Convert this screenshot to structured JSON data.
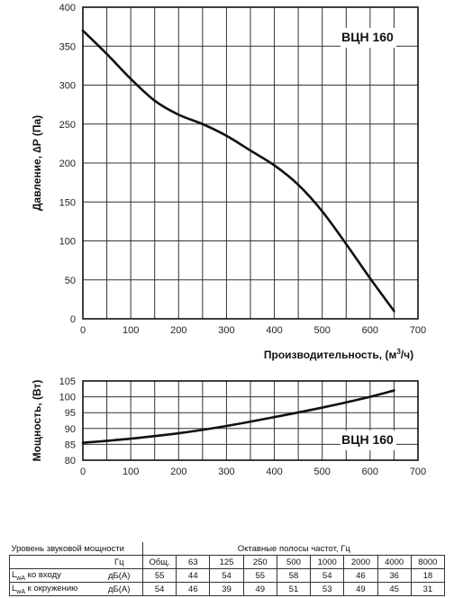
{
  "chart_data": [
    {
      "type": "line",
      "title": "ВЦН 160",
      "xlabel": "Производительность, (м³/ч)",
      "xlabel_main": "Производительность, (м",
      "xlabel_sup": "3",
      "xlabel_tail": "/ч)",
      "ylabel": "Давление, ∆P (Па)",
      "xlim": [
        0,
        700
      ],
      "ylim": [
        0,
        400
      ],
      "xticks": [
        0,
        100,
        200,
        300,
        400,
        500,
        600,
        700
      ],
      "yticks": [
        0,
        50,
        100,
        150,
        200,
        250,
        300,
        350,
        400
      ],
      "grid": true,
      "series": [
        {
          "x": [
            0,
            50,
            100,
            150,
            200,
            250,
            300,
            350,
            400,
            450,
            500,
            550,
            600,
            650
          ],
          "y": [
            370,
            340,
            308,
            280,
            262,
            250,
            235,
            216,
            197,
            172,
            138,
            96,
            52,
            10
          ]
        }
      ]
    },
    {
      "type": "line",
      "title": "ВЦН 160",
      "xlabel": "",
      "ylabel": "Мощность, (Вт)",
      "xlim": [
        0,
        700
      ],
      "ylim": [
        80,
        105
      ],
      "xticks": [
        0,
        100,
        200,
        300,
        400,
        500,
        600,
        700
      ],
      "yticks": [
        80,
        85,
        90,
        95,
        100,
        105
      ],
      "grid": true,
      "series": [
        {
          "x": [
            0,
            100,
            200,
            300,
            400,
            500,
            600,
            650
          ],
          "y": [
            85.5,
            86.8,
            88.5,
            90.8,
            93.6,
            96.6,
            100,
            102
          ]
        }
      ]
    }
  ],
  "sound_table": {
    "title": "Уровень звуковой мощности",
    "bands_title": "Октавные полосы частот, Гц",
    "hz_label": "Гц",
    "columns": [
      "Общ.",
      "63",
      "125",
      "250",
      "500",
      "1000",
      "2000",
      "4000",
      "8000"
    ],
    "rows": [
      {
        "label_l": "L",
        "label_sub": "wA",
        "label_rest": " ко входу",
        "unit": "дБ(А)",
        "values": [
          "55",
          "44",
          "54",
          "55",
          "58",
          "54",
          "46",
          "36",
          "18"
        ]
      },
      {
        "label_l": "L",
        "label_sub": "wA",
        "label_rest": " к окружению",
        "unit": "дБ(А)",
        "values": [
          "54",
          "46",
          "39",
          "49",
          "51",
          "53",
          "49",
          "45",
          "31"
        ]
      }
    ]
  },
  "colors": {
    "line": "#111111",
    "grid": "#333333",
    "frame": "#111111"
  }
}
